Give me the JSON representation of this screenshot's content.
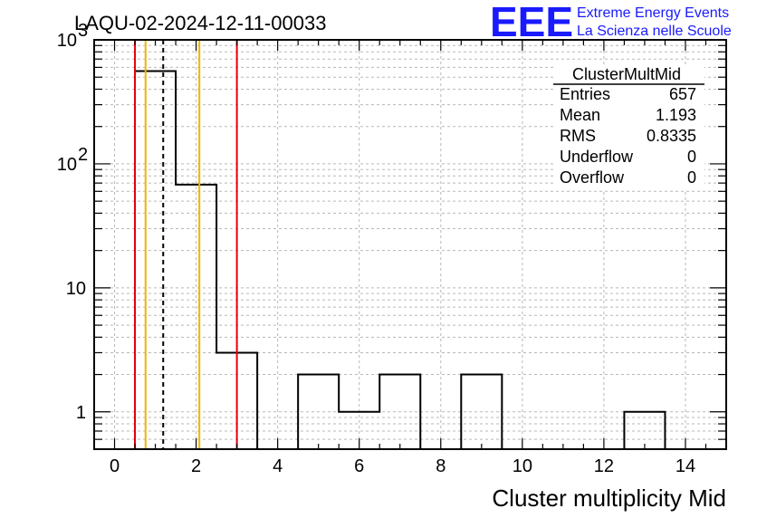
{
  "plot_title": "LAQU-02-2024-12-11-00033",
  "logo": {
    "mark": "EEE",
    "line1": "Extreme Energy Events",
    "line2": "La Scienza nelle Scuole",
    "color": "#1a1aff"
  },
  "stats": {
    "name": "ClusterMultMid",
    "rows": [
      {
        "label": "Entries",
        "value": "657"
      },
      {
        "label": "Mean",
        "value": "1.193"
      },
      {
        "label": "RMS",
        "value": "0.8335"
      },
      {
        "label": "Underflow",
        "value": "0"
      },
      {
        "label": "Overflow",
        "value": "0"
      }
    ]
  },
  "chart_data": {
    "type": "bar",
    "style": "step-histogram",
    "xlabel": "Cluster multiplicity Mid",
    "ylabel": "",
    "xlim": [
      -0.5,
      15.0
    ],
    "ylim": [
      0.5,
      1000
    ],
    "y_scale": "log",
    "grid": true,
    "x_ticks": [
      0,
      2,
      4,
      6,
      8,
      10,
      12,
      14
    ],
    "y_ticks": [
      {
        "value": 1,
        "label": "1"
      },
      {
        "value": 10,
        "label": "10"
      },
      {
        "value": 100,
        "label": "10",
        "exp": "2"
      },
      {
        "value": 1000,
        "label": "10",
        "exp": "3"
      }
    ],
    "bins": [
      {
        "x0": 0.5,
        "x1": 1.5,
        "value": 560
      },
      {
        "x0": 1.5,
        "x1": 2.5,
        "value": 68
      },
      {
        "x0": 2.5,
        "x1": 3.5,
        "value": 3
      },
      {
        "x0": 3.5,
        "x1": 4.5,
        "value": 0
      },
      {
        "x0": 4.5,
        "x1": 5.5,
        "value": 2
      },
      {
        "x0": 5.5,
        "x1": 6.5,
        "value": 1
      },
      {
        "x0": 6.5,
        "x1": 7.5,
        "value": 2
      },
      {
        "x0": 7.5,
        "x1": 8.5,
        "value": 0
      },
      {
        "x0": 8.5,
        "x1": 9.5,
        "value": 2
      },
      {
        "x0": 9.5,
        "x1": 12.5,
        "value": 0
      },
      {
        "x0": 12.5,
        "x1": 13.5,
        "value": 1
      }
    ],
    "markers": [
      {
        "name": "red-line-left",
        "x": 0.5,
        "color": "#e8000b",
        "dash": false
      },
      {
        "name": "orange-line-left",
        "x": 0.76,
        "color": "#f0b400",
        "dash": false
      },
      {
        "name": "mean-line",
        "x": 1.193,
        "color": "#000000",
        "dash": true
      },
      {
        "name": "orange-line-right",
        "x": 2.08,
        "color": "#f0b400",
        "dash": false
      },
      {
        "name": "red-line-right",
        "x": 3.0,
        "color": "#e8000b",
        "dash": false
      }
    ]
  }
}
